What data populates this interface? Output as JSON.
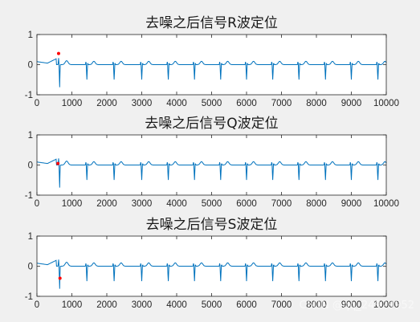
{
  "watermark": "CSDN @qq_24929952",
  "chart_data": [
    {
      "type": "line",
      "title": "去噪之后信号R波定位",
      "xlim": [
        0,
        10000
      ],
      "ylim": [
        -1,
        1
      ],
      "xticks": [
        0,
        1000,
        2000,
        3000,
        4000,
        5000,
        6000,
        7000,
        8000,
        9000,
        10000
      ],
      "yticks": [
        -1,
        0,
        1
      ],
      "series_color": "#0072bd",
      "marker_color": "#ff0000",
      "beats": [
        650,
        1430,
        2210,
        3000,
        3760,
        4510,
        5260,
        6000,
        6750,
        7500,
        8260,
        9000,
        9760
      ],
      "marker": {
        "x": 620,
        "y": 0.37
      }
    },
    {
      "type": "line",
      "title": "去噪之后信号Q波定位",
      "xlim": [
        0,
        10000
      ],
      "ylim": [
        -1,
        1
      ],
      "xticks": [
        0,
        1000,
        2000,
        3000,
        4000,
        5000,
        6000,
        7000,
        8000,
        9000,
        10000
      ],
      "yticks": [
        -1,
        0,
        1
      ],
      "series_color": "#0072bd",
      "marker_color": "#ff0000",
      "beats": [
        650,
        1430,
        2210,
        3000,
        3760,
        4510,
        5260,
        6000,
        6750,
        7500,
        8260,
        9000,
        9760
      ],
      "marker": {
        "x": 600,
        "y": 0.05
      }
    },
    {
      "type": "line",
      "title": "去噪之后信号S波定位",
      "xlim": [
        0,
        10000
      ],
      "ylim": [
        -1,
        1
      ],
      "xticks": [
        0,
        1000,
        2000,
        3000,
        4000,
        5000,
        6000,
        7000,
        8000,
        9000,
        10000
      ],
      "yticks": [
        -1,
        0,
        1
      ],
      "series_color": "#0072bd",
      "marker_color": "#ff0000",
      "beats": [
        650,
        1430,
        2210,
        3000,
        3760,
        4510,
        5260,
        6000,
        6750,
        7500,
        8260,
        9000,
        9760
      ],
      "marker": {
        "x": 660,
        "y": -0.4
      }
    }
  ]
}
